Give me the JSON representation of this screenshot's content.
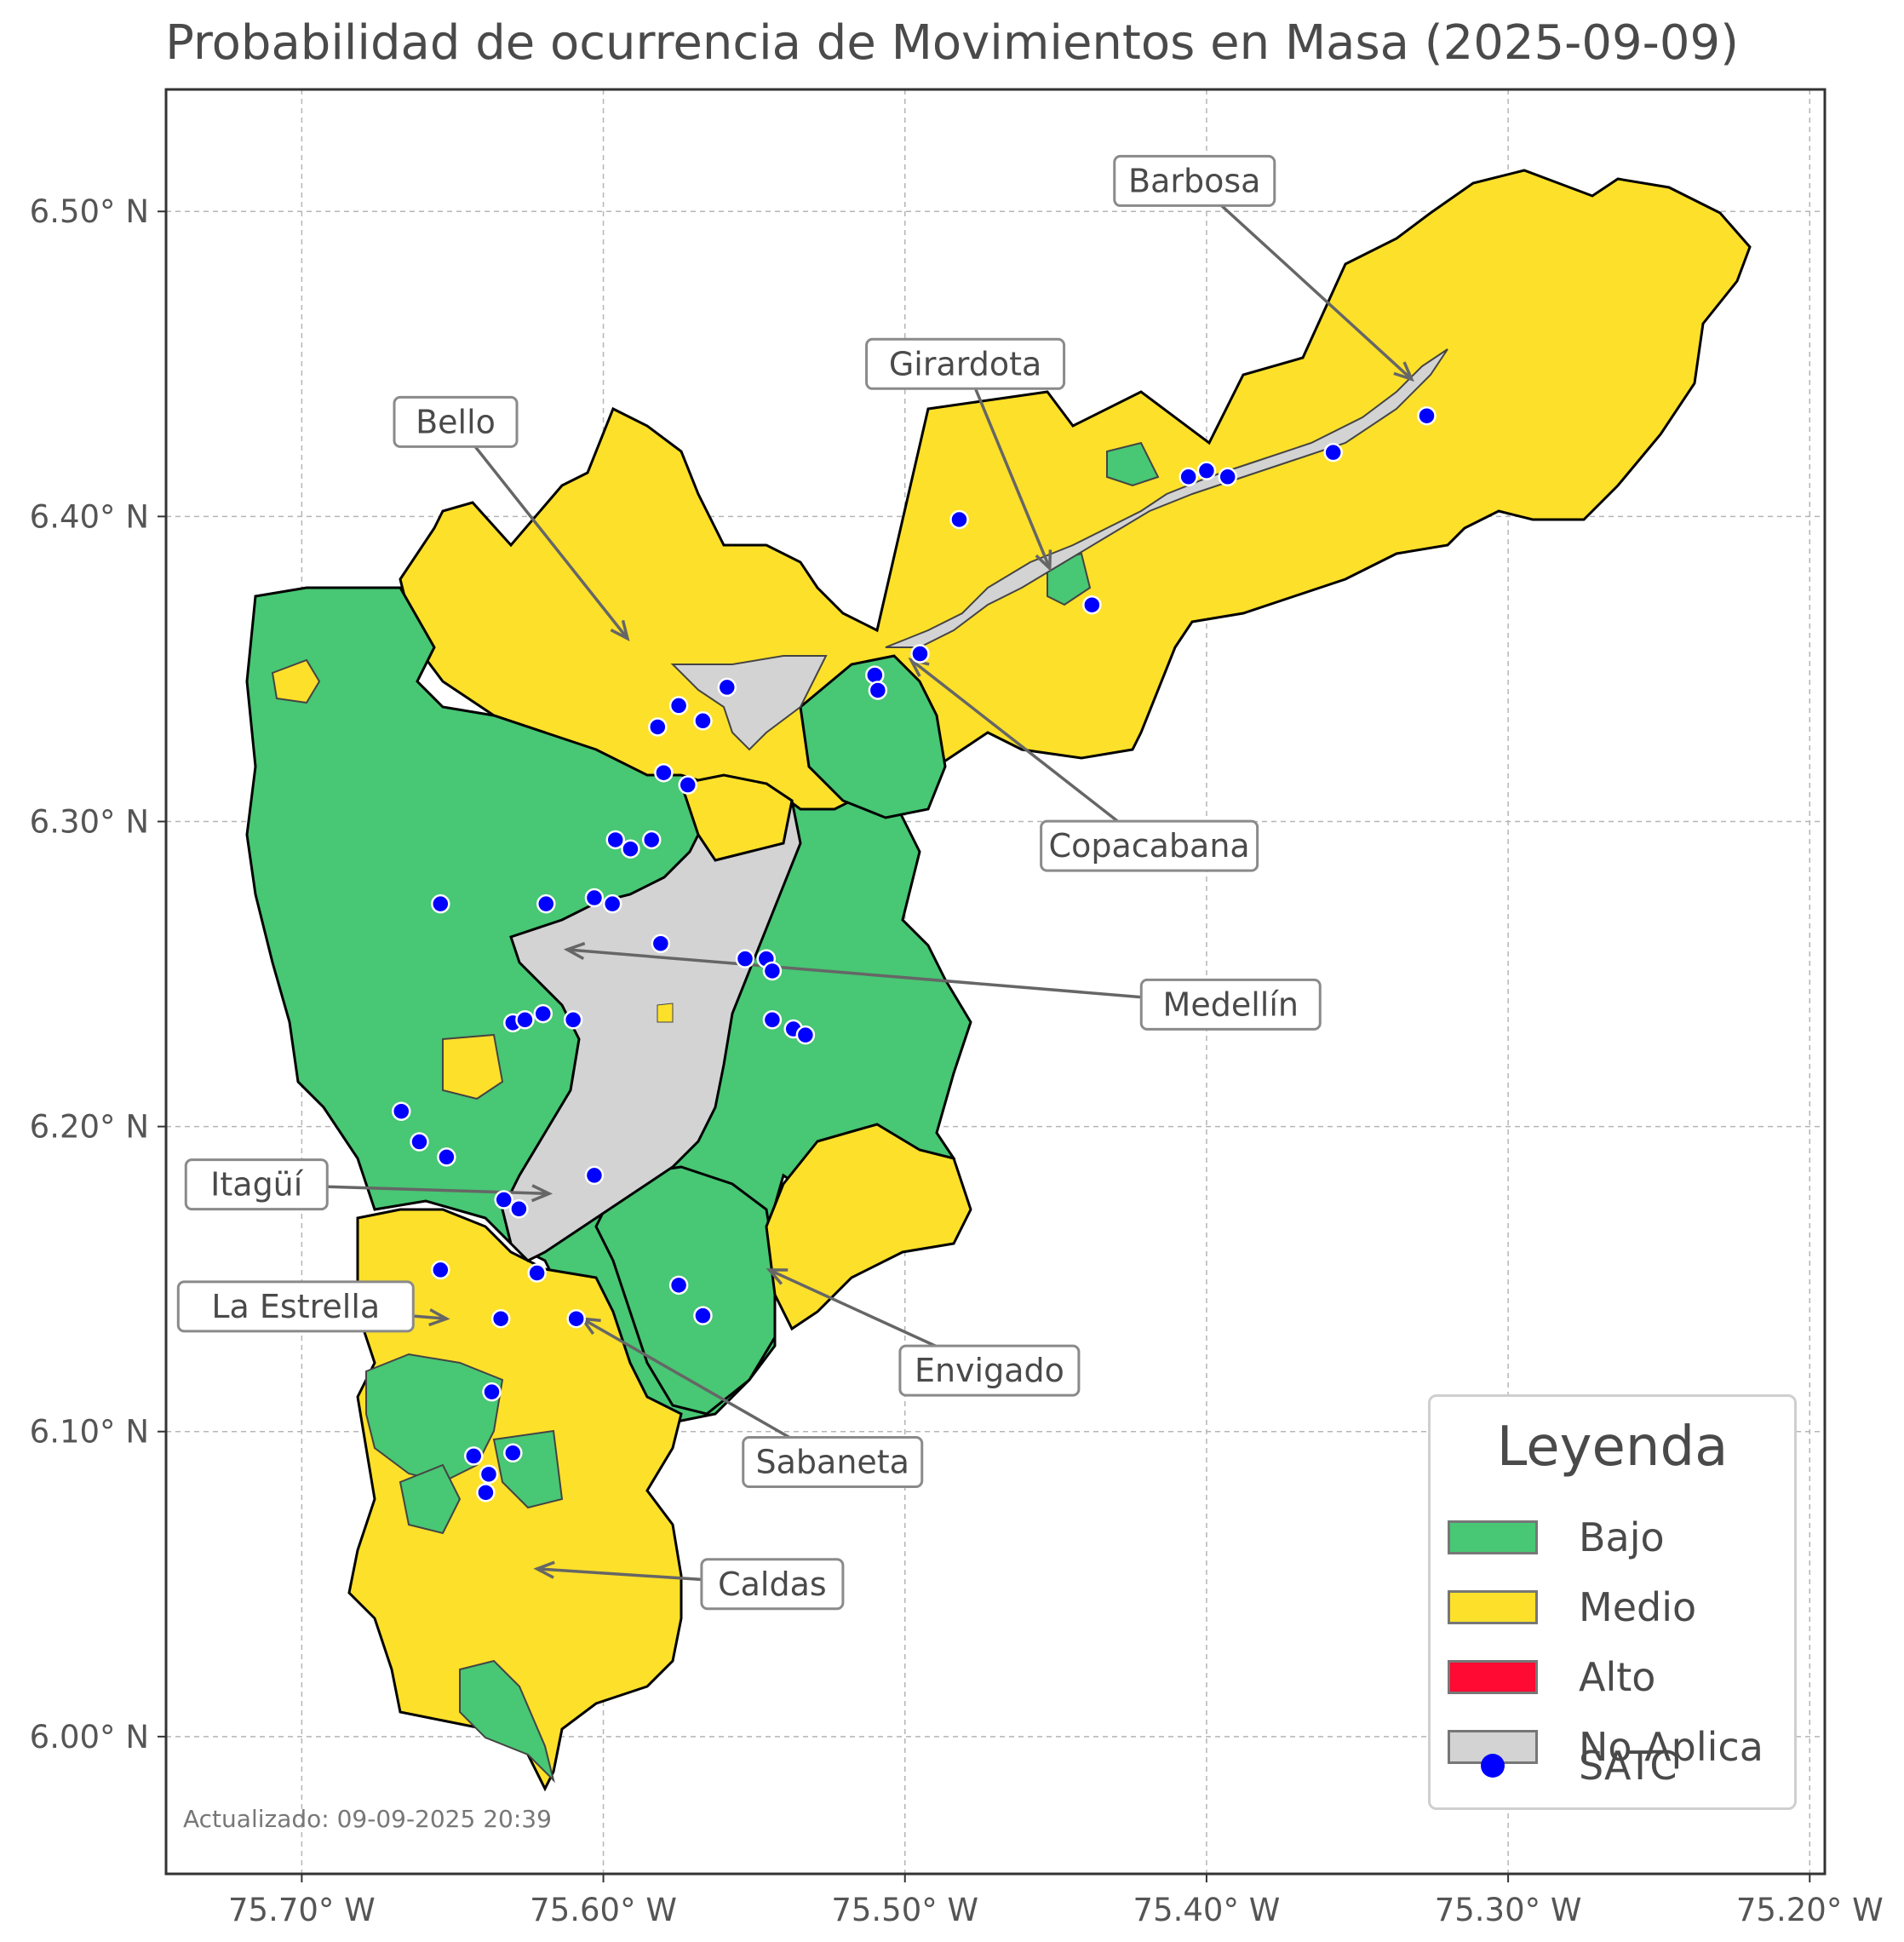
{
  "title": "Probabilidad de ocurrencia de Movimientos en Masa (2025-09-09)",
  "colors": {
    "bajo": "#48c774",
    "medio": "#fde02a",
    "alto": "#ff0a32",
    "no_aplica": "#d3d3d3",
    "satc": "#0000ff",
    "boundary": "#000000",
    "sub_boundary": "#444444"
  },
  "axes": {
    "lon_range": [
      -75.745,
      -75.195
    ],
    "lat_range": [
      5.955,
      6.54
    ],
    "x_ticks": [
      {
        "value": -75.7,
        "label": "75.70° W"
      },
      {
        "value": -75.6,
        "label": "75.60° W"
      },
      {
        "value": -75.5,
        "label": "75.50° W"
      },
      {
        "value": -75.4,
        "label": "75.40° W"
      },
      {
        "value": -75.3,
        "label": "75.30° W"
      },
      {
        "value": -75.2,
        "label": "75.20° W"
      }
    ],
    "y_ticks": [
      {
        "value": 6.5,
        "label": "6.50° N"
      },
      {
        "value": 6.4,
        "label": "6.40° N"
      },
      {
        "value": 6.3,
        "label": "6.30° N"
      },
      {
        "value": 6.2,
        "label": "6.20° N"
      },
      {
        "value": 6.1,
        "label": "6.10° N"
      },
      {
        "value": 6.0,
        "label": "6.00° N"
      }
    ],
    "grid": true
  },
  "municipalities": [
    {
      "name": "Barbosa",
      "level": "medio",
      "target": [
        -75.332,
        6.445
      ],
      "label_at": [
        -75.404,
        6.51
      ]
    },
    {
      "name": "Girardota",
      "level": "medio",
      "target": [
        -75.452,
        6.383
      ],
      "label_at": [
        -75.48,
        6.45
      ]
    },
    {
      "name": "Bello",
      "level": "medio",
      "target": [
        -75.592,
        6.36
      ],
      "label_at": [
        -75.649,
        6.431
      ]
    },
    {
      "name": "Copacabana",
      "level": "medio",
      "target": [
        -75.498,
        6.353
      ],
      "label_at": [
        -75.419,
        6.292
      ]
    },
    {
      "name": "Medellín",
      "level": "bajo",
      "target": [
        -75.612,
        6.258
      ],
      "label_at": [
        -75.392,
        6.24
      ]
    },
    {
      "name": "Itagüí",
      "level": "bajo",
      "target": [
        -75.618,
        6.178
      ],
      "label_at": [
        -75.715,
        6.181
      ]
    },
    {
      "name": "La Estrella",
      "level": "medio",
      "target": [
        -75.652,
        6.137
      ],
      "label_at": [
        -75.702,
        6.141
      ]
    },
    {
      "name": "Envigado",
      "level": "medio",
      "target": [
        -75.545,
        6.153
      ],
      "label_at": [
        -75.472,
        6.12
      ]
    },
    {
      "name": "Sabaneta",
      "level": "bajo",
      "target": [
        -75.607,
        6.137
      ],
      "label_at": [
        -75.524,
        6.09
      ]
    },
    {
      "name": "Caldas",
      "level": "medio",
      "target": [
        -75.622,
        6.055
      ],
      "label_at": [
        -75.544,
        6.05
      ]
    }
  ],
  "satc_stations": [
    [
      -75.327,
      6.433
    ],
    [
      -75.358,
      6.421
    ],
    [
      -75.393,
      6.413
    ],
    [
      -75.4,
      6.415
    ],
    [
      -75.406,
      6.413
    ],
    [
      -75.482,
      6.399
    ],
    [
      -75.438,
      6.371
    ],
    [
      -75.495,
      6.355
    ],
    [
      -75.51,
      6.348
    ],
    [
      -75.509,
      6.343
    ],
    [
      -75.559,
      6.344
    ],
    [
      -75.567,
      6.333
    ],
    [
      -75.575,
      6.338
    ],
    [
      -75.582,
      6.331
    ],
    [
      -75.58,
      6.316
    ],
    [
      -75.572,
      6.312
    ],
    [
      -75.596,
      6.294
    ],
    [
      -75.591,
      6.291
    ],
    [
      -75.584,
      6.294
    ],
    [
      -75.654,
      6.273
    ],
    [
      -75.619,
      6.273
    ],
    [
      -75.603,
      6.275
    ],
    [
      -75.597,
      6.273
    ],
    [
      -75.581,
      6.26
    ],
    [
      -75.553,
      6.255
    ],
    [
      -75.546,
      6.255
    ],
    [
      -75.544,
      6.251
    ],
    [
      -75.544,
      6.235
    ],
    [
      -75.537,
      6.232
    ],
    [
      -75.533,
      6.23
    ],
    [
      -75.63,
      6.234
    ],
    [
      -75.626,
      6.235
    ],
    [
      -75.62,
      6.237
    ],
    [
      -75.61,
      6.235
    ],
    [
      -75.667,
      6.205
    ],
    [
      -75.661,
      6.195
    ],
    [
      -75.652,
      6.19
    ],
    [
      -75.633,
      6.176
    ],
    [
      -75.628,
      6.173
    ],
    [
      -75.603,
      6.184
    ],
    [
      -75.654,
      6.153
    ],
    [
      -75.622,
      6.152
    ],
    [
      -75.575,
      6.148
    ],
    [
      -75.567,
      6.138
    ],
    [
      -75.609,
      6.137
    ],
    [
      -75.634,
      6.137
    ],
    [
      -75.637,
      6.113
    ],
    [
      -75.643,
      6.092
    ],
    [
      -75.63,
      6.093
    ],
    [
      -75.638,
      6.086
    ],
    [
      -75.639,
      6.08
    ]
  ],
  "legend": {
    "title": "Leyenda",
    "items": [
      {
        "label": "Bajo",
        "color": "#48c774",
        "kind": "patch"
      },
      {
        "label": "Medio",
        "color": "#fde02a",
        "kind": "patch"
      },
      {
        "label": "Alto",
        "color": "#ff0a32",
        "kind": "patch"
      },
      {
        "label": "No Aplica",
        "color": "#d3d3d3",
        "kind": "patch"
      },
      {
        "label": "SATC",
        "color": "#0000ff",
        "kind": "point"
      }
    ]
  },
  "updated": "Actualizado: 09-09-2025 20:39"
}
